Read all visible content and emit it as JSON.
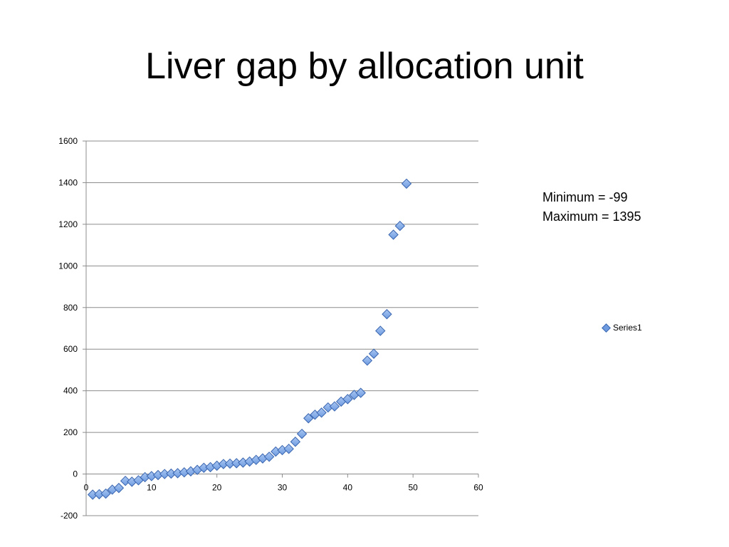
{
  "slide": {
    "title": "Liver gap by allocation unit"
  },
  "stats": {
    "min_label": "Minimum = -99",
    "max_label": "Maximum = 1395"
  },
  "chart_data": {
    "type": "scatter",
    "title": "",
    "xlabel": "",
    "ylabel": "",
    "xlim": [
      0,
      60
    ],
    "ylim": [
      -200,
      1600
    ],
    "x_ticks": [
      0,
      10,
      20,
      30,
      40,
      50,
      60
    ],
    "y_ticks": [
      -200,
      0,
      200,
      400,
      600,
      800,
      1000,
      1200,
      1400,
      1600
    ],
    "grid": "horizontal",
    "legend_position": "right",
    "colors": {
      "marker_fill": "#6e9be0",
      "marker_stroke": "#3a66b0",
      "grid": "#8c8c8c"
    },
    "series": [
      {
        "name": "Series1",
        "x": [
          1,
          2,
          3,
          4,
          5,
          6,
          7,
          8,
          9,
          10,
          11,
          12,
          13,
          14,
          15,
          16,
          17,
          18,
          19,
          20,
          21,
          22,
          23,
          24,
          25,
          26,
          27,
          28,
          29,
          30,
          31,
          32,
          33,
          34,
          35,
          36,
          37,
          38,
          39,
          40,
          41,
          42,
          43,
          44,
          45,
          46,
          47,
          48,
          49
        ],
        "y": [
          -99,
          -97,
          -94,
          -75,
          -67,
          -33,
          -37,
          -30,
          -15,
          -10,
          -5,
          0,
          2,
          4,
          8,
          13,
          20,
          30,
          33,
          40,
          48,
          50,
          52,
          55,
          60,
          68,
          75,
          83,
          108,
          115,
          121,
          155,
          193,
          268,
          285,
          295,
          320,
          325,
          348,
          360,
          380,
          390,
          545,
          578,
          688,
          768,
          1150,
          1192,
          1395
        ]
      }
    ]
  }
}
